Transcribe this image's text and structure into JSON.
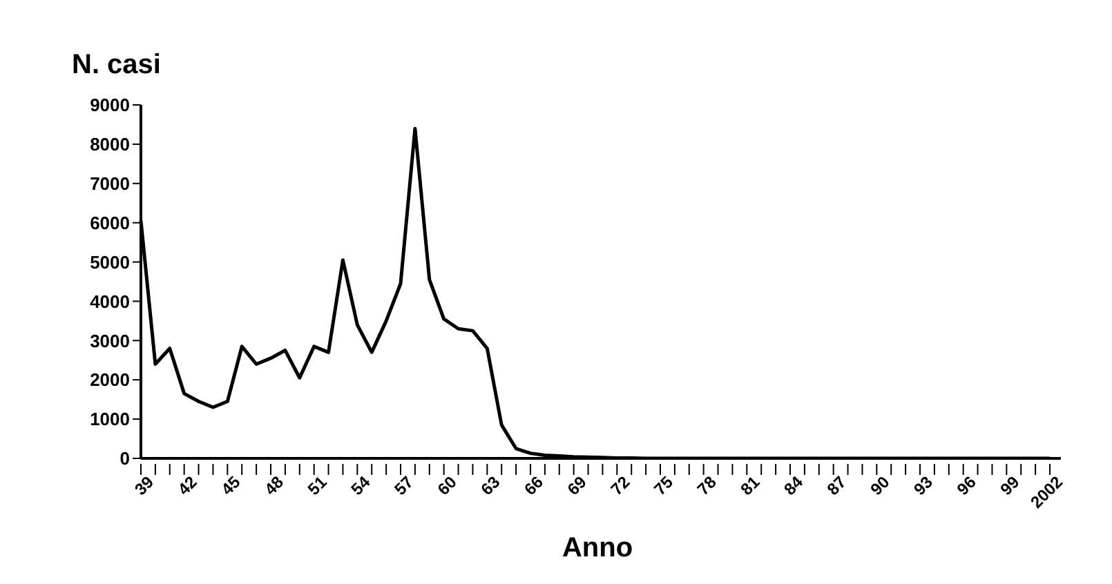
{
  "chart_data": {
    "type": "line",
    "title": "N. casi",
    "xlabel": "Anno",
    "categories": [
      "39",
      null,
      null,
      "42",
      null,
      null,
      "45",
      null,
      null,
      "48",
      null,
      null,
      "51",
      null,
      null,
      "54",
      null,
      null,
      "57",
      null,
      null,
      "60",
      null,
      null,
      "63",
      null,
      null,
      "66",
      null,
      null,
      "69",
      null,
      null,
      "72",
      null,
      null,
      "75",
      null,
      null,
      "78",
      null,
      null,
      "81",
      null,
      null,
      "84",
      null,
      null,
      "87",
      null,
      null,
      "90",
      null,
      null,
      "93",
      null,
      null,
      "96",
      null,
      null,
      "99",
      null,
      null,
      "2002"
    ],
    "series": [
      {
        "color": "#000000",
        "values": [
          6050,
          2400,
          2800,
          1650,
          1450,
          1300,
          1450,
          2850,
          2400,
          2550,
          2750,
          2050,
          2850,
          2700,
          5050,
          3400,
          2700,
          3500,
          4450,
          8400,
          4550,
          3550,
          3300,
          3250,
          2800,
          850,
          250,
          130,
          80,
          60,
          40,
          30,
          20,
          10,
          10,
          0,
          0,
          0,
          0,
          0,
          0,
          0,
          0,
          0,
          0,
          0,
          0,
          0,
          0,
          0,
          0,
          0,
          0,
          0,
          0,
          0,
          0,
          0,
          0,
          0,
          0,
          0,
          0,
          0
        ]
      }
    ],
    "ylim": [
      0,
      9000
    ],
    "yticks": [
      0,
      1000,
      2000,
      3000,
      4000,
      5000,
      6000,
      7000,
      8000,
      9000
    ],
    "grid": false,
    "legend": false,
    "marker": "none",
    "line_style": "solid"
  }
}
